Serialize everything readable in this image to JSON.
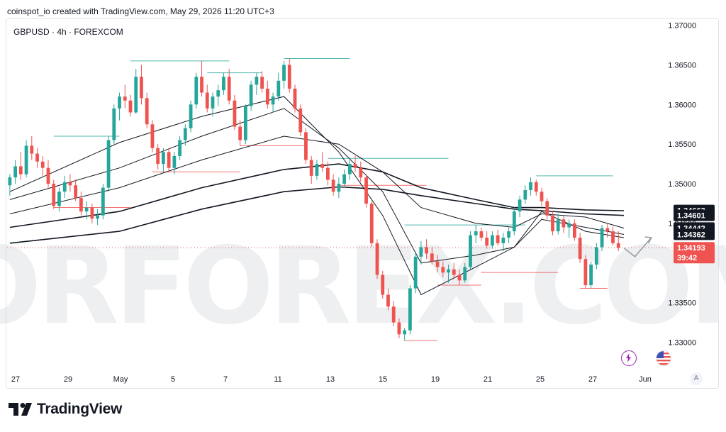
{
  "credit": "coinspot_io created with TradingView.com, May 29, 2026 11:20 UTC+3",
  "symbol_line": "GBPUSD · 4h · FOREXCOM",
  "brand": "TradingView",
  "watermark": "TORFOREX.COM",
  "autoscale_label": "A",
  "colors": {
    "up": "#26a69a",
    "down": "#ef5350",
    "ma_line": "#131722",
    "last_price_badge": "#ef5350",
    "ma_badge": "#131722",
    "level_up": "#26a69a",
    "level_down": "#ef5350"
  },
  "chart_data": {
    "type": "candlestick",
    "timeframe": "4h",
    "y_axis": {
      "ylim": [
        1.327,
        1.3705
      ],
      "ticks": [
        "1.37000",
        "1.36500",
        "1.36000",
        "1.35500",
        "1.35000",
        "1.34500",
        "1.33500",
        "1.33000"
      ]
    },
    "x_axis": {
      "ticks": [
        "27",
        "29",
        "May",
        "5",
        "7",
        "11",
        "13",
        "15",
        "19",
        "21",
        "25",
        "27",
        "Jun"
      ]
    },
    "price_badges": [
      {
        "label": "1.34663",
        "value": 1.34663,
        "kind": "ma"
      },
      {
        "label": "1.34601",
        "value": 1.34601,
        "kind": "ma"
      },
      {
        "label": "1.34442",
        "value": 1.34442,
        "kind": "ma"
      },
      {
        "label": "1.34362",
        "value": 1.34362,
        "kind": "ma"
      },
      {
        "label": "1.34193",
        "value": 1.34193,
        "kind": "last"
      }
    ],
    "countdown": "39:42",
    "last_price": 1.34193,
    "candles": [
      [
        1.3498,
        1.3512,
        1.3485,
        1.3508
      ],
      [
        1.3508,
        1.353,
        1.35,
        1.3522
      ],
      [
        1.3522,
        1.354,
        1.3505,
        1.3512
      ],
      [
        1.3512,
        1.3555,
        1.3508,
        1.3548
      ],
      [
        1.3548,
        1.356,
        1.353,
        1.3538
      ],
      [
        1.3538,
        1.3545,
        1.352,
        1.3528
      ],
      [
        1.3528,
        1.3535,
        1.351,
        1.352
      ],
      [
        1.352,
        1.353,
        1.3495,
        1.35
      ],
      [
        1.35,
        1.3505,
        1.3468,
        1.3472
      ],
      [
        1.3472,
        1.3495,
        1.3465,
        1.349
      ],
      [
        1.349,
        1.351,
        1.3482,
        1.3502
      ],
      [
        1.3502,
        1.3512,
        1.349,
        1.3498
      ],
      [
        1.3498,
        1.3505,
        1.3478,
        1.3482
      ],
      [
        1.3482,
        1.349,
        1.346,
        1.3465
      ],
      [
        1.3465,
        1.3478,
        1.3455,
        1.347
      ],
      [
        1.347,
        1.3475,
        1.345,
        1.3456
      ],
      [
        1.3456,
        1.3468,
        1.3448,
        1.346
      ],
      [
        1.346,
        1.35,
        1.3455,
        1.3495
      ],
      [
        1.3495,
        1.356,
        1.349,
        1.3555
      ],
      [
        1.3555,
        1.36,
        1.355,
        1.3595
      ],
      [
        1.3595,
        1.3615,
        1.358,
        1.361
      ],
      [
        1.361,
        1.3625,
        1.3595,
        1.3605
      ],
      [
        1.3605,
        1.3612,
        1.3585,
        1.359
      ],
      [
        1.359,
        1.3645,
        1.3588,
        1.3635
      ],
      [
        1.3635,
        1.365,
        1.36,
        1.3608
      ],
      [
        1.3608,
        1.3615,
        1.357,
        1.3575
      ],
      [
        1.3575,
        1.358,
        1.354,
        1.3545
      ],
      [
        1.3545,
        1.355,
        1.3518,
        1.3525
      ],
      [
        1.3525,
        1.3545,
        1.3515,
        1.354
      ],
      [
        1.354,
        1.3545,
        1.3515,
        1.352
      ],
      [
        1.352,
        1.354,
        1.3512,
        1.3535
      ],
      [
        1.3535,
        1.356,
        1.353,
        1.3555
      ],
      [
        1.3555,
        1.3575,
        1.3548,
        1.357
      ],
      [
        1.357,
        1.3605,
        1.3565,
        1.36
      ],
      [
        1.36,
        1.364,
        1.3595,
        1.3635
      ],
      [
        1.3635,
        1.3655,
        1.361,
        1.3615
      ],
      [
        1.3615,
        1.3625,
        1.359,
        1.3595
      ],
      [
        1.3595,
        1.3615,
        1.3585,
        1.361
      ],
      [
        1.361,
        1.3625,
        1.3598,
        1.3618
      ],
      [
        1.3618,
        1.364,
        1.3612,
        1.3635
      ],
      [
        1.3635,
        1.3645,
        1.36,
        1.3605
      ],
      [
        1.3605,
        1.3612,
        1.3568,
        1.3572
      ],
      [
        1.3572,
        1.358,
        1.3548,
        1.3555
      ],
      [
        1.3555,
        1.36,
        1.355,
        1.3598
      ],
      [
        1.3598,
        1.363,
        1.3592,
        1.3625
      ],
      [
        1.3625,
        1.364,
        1.3612,
        1.3635
      ],
      [
        1.3635,
        1.3642,
        1.3615,
        1.362
      ],
      [
        1.362,
        1.363,
        1.3595,
        1.36
      ],
      [
        1.36,
        1.3615,
        1.359,
        1.361
      ],
      [
        1.361,
        1.364,
        1.3605,
        1.363
      ],
      [
        1.363,
        1.3655,
        1.362,
        1.365
      ],
      [
        1.365,
        1.3658,
        1.3615,
        1.362
      ],
      [
        1.362,
        1.3625,
        1.359,
        1.3595
      ],
      [
        1.3595,
        1.36,
        1.356,
        1.3565
      ],
      [
        1.3565,
        1.357,
        1.3525,
        1.353
      ],
      [
        1.353,
        1.3535,
        1.35,
        1.351
      ],
      [
        1.351,
        1.353,
        1.3505,
        1.3525
      ],
      [
        1.3525,
        1.354,
        1.3515,
        1.352
      ],
      [
        1.352,
        1.3528,
        1.3498,
        1.3505
      ],
      [
        1.3505,
        1.3512,
        1.3485,
        1.349
      ],
      [
        1.349,
        1.3508,
        1.3482,
        1.35
      ],
      [
        1.35,
        1.3518,
        1.3495,
        1.3512
      ],
      [
        1.3512,
        1.353,
        1.3505,
        1.3525
      ],
      [
        1.3525,
        1.3535,
        1.3515,
        1.352
      ],
      [
        1.352,
        1.3528,
        1.3502,
        1.3508
      ],
      [
        1.3508,
        1.3512,
        1.347,
        1.3475
      ],
      [
        1.3475,
        1.3478,
        1.342,
        1.3425
      ],
      [
        1.3425,
        1.343,
        1.338,
        1.3385
      ],
      [
        1.3385,
        1.339,
        1.3355,
        1.336
      ],
      [
        1.336,
        1.3368,
        1.334,
        1.3345
      ],
      [
        1.3345,
        1.3352,
        1.332,
        1.3325
      ],
      [
        1.3325,
        1.333,
        1.3305,
        1.331
      ],
      [
        1.331,
        1.3318,
        1.3302,
        1.3315
      ],
      [
        1.3315,
        1.3372,
        1.331,
        1.3368
      ],
      [
        1.3368,
        1.3412,
        1.3362,
        1.3408
      ],
      [
        1.3408,
        1.3428,
        1.3398,
        1.342
      ],
      [
        1.342,
        1.343,
        1.3405,
        1.3412
      ],
      [
        1.3412,
        1.342,
        1.3398,
        1.3402
      ],
      [
        1.3402,
        1.341,
        1.3388,
        1.3395
      ],
      [
        1.3395,
        1.3402,
        1.3382,
        1.3388
      ],
      [
        1.3388,
        1.3398,
        1.3375,
        1.3392
      ],
      [
        1.3392,
        1.34,
        1.338,
        1.3385
      ],
      [
        1.3385,
        1.3392,
        1.3372,
        1.3378
      ],
      [
        1.3378,
        1.34,
        1.3375,
        1.3395
      ],
      [
        1.3395,
        1.344,
        1.3392,
        1.3435
      ],
      [
        1.3435,
        1.3448,
        1.3425,
        1.344
      ],
      [
        1.344,
        1.3445,
        1.3428,
        1.3432
      ],
      [
        1.3432,
        1.344,
        1.3418,
        1.3422
      ],
      [
        1.3422,
        1.344,
        1.3418,
        1.3435
      ],
      [
        1.3435,
        1.3442,
        1.3422,
        1.3425
      ],
      [
        1.3425,
        1.3438,
        1.3415,
        1.3432
      ],
      [
        1.3432,
        1.3445,
        1.3425,
        1.344
      ],
      [
        1.344,
        1.347,
        1.3435,
        1.3465
      ],
      [
        1.3465,
        1.3485,
        1.3458,
        1.348
      ],
      [
        1.348,
        1.3498,
        1.3475,
        1.3492
      ],
      [
        1.3492,
        1.3508,
        1.3485,
        1.3502
      ],
      [
        1.3502,
        1.3505,
        1.3485,
        1.349
      ],
      [
        1.349,
        1.3495,
        1.3472,
        1.3478
      ],
      [
        1.3478,
        1.3482,
        1.3455,
        1.346
      ],
      [
        1.346,
        1.3465,
        1.3435,
        1.344
      ],
      [
        1.344,
        1.3462,
        1.3436,
        1.3455
      ],
      [
        1.3455,
        1.346,
        1.3438,
        1.3445
      ],
      [
        1.3445,
        1.3455,
        1.3432,
        1.345
      ],
      [
        1.345,
        1.3455,
        1.3428,
        1.3432
      ],
      [
        1.3432,
        1.3438,
        1.34,
        1.3405
      ],
      [
        1.3405,
        1.341,
        1.3368,
        1.3372
      ],
      [
        1.3372,
        1.3402,
        1.3368,
        1.3398
      ],
      [
        1.3398,
        1.3425,
        1.3392,
        1.342
      ],
      [
        1.342,
        1.3448,
        1.3415,
        1.3444
      ],
      [
        1.3444,
        1.345,
        1.3432,
        1.344
      ],
      [
        1.344,
        1.3446,
        1.3422,
        1.3425
      ],
      [
        1.3425,
        1.344,
        1.3415,
        1.3419
      ]
    ],
    "moving_averages": [
      {
        "points": [
          [
            0,
            1.349
          ],
          [
            20,
            1.3552
          ],
          [
            35,
            1.3585
          ],
          [
            50,
            1.361
          ],
          [
            60,
            1.354
          ],
          [
            68,
            1.346
          ],
          [
            75,
            1.336
          ],
          [
            85,
            1.3395
          ],
          [
            92,
            1.342
          ],
          [
            97,
            1.3465
          ],
          [
            105,
            1.344
          ],
          [
            112,
            1.3432
          ]
        ]
      },
      {
        "points": [
          [
            0,
            1.348
          ],
          [
            20,
            1.352
          ],
          [
            35,
            1.356
          ],
          [
            50,
            1.3595
          ],
          [
            60,
            1.3545
          ],
          [
            68,
            1.349
          ],
          [
            75,
            1.34
          ],
          [
            85,
            1.341
          ],
          [
            92,
            1.342
          ],
          [
            97,
            1.3455
          ],
          [
            105,
            1.3445
          ],
          [
            112,
            1.3436
          ]
        ]
      },
      {
        "points": [
          [
            0,
            1.3462
          ],
          [
            20,
            1.3495
          ],
          [
            35,
            1.353
          ],
          [
            50,
            1.356
          ],
          [
            60,
            1.355
          ],
          [
            68,
            1.3515
          ],
          [
            75,
            1.347
          ],
          [
            85,
            1.345
          ],
          [
            92,
            1.3445
          ],
          [
            97,
            1.3462
          ],
          [
            105,
            1.3458
          ],
          [
            112,
            1.3444
          ]
        ]
      },
      {
        "points": [
          [
            0,
            1.3445
          ],
          [
            20,
            1.3465
          ],
          [
            35,
            1.3495
          ],
          [
            50,
            1.3518
          ],
          [
            60,
            1.3525
          ],
          [
            68,
            1.3515
          ],
          [
            75,
            1.3495
          ],
          [
            85,
            1.348
          ],
          [
            92,
            1.347
          ],
          [
            97,
            1.347
          ],
          [
            105,
            1.3467
          ],
          [
            112,
            1.3466
          ]
        ]
      },
      {
        "points": [
          [
            0,
            1.3425
          ],
          [
            20,
            1.344
          ],
          [
            35,
            1.3468
          ],
          [
            50,
            1.349
          ],
          [
            60,
            1.3496
          ],
          [
            68,
            1.3493
          ],
          [
            75,
            1.3485
          ],
          [
            85,
            1.3475
          ],
          [
            92,
            1.3468
          ],
          [
            97,
            1.3466
          ],
          [
            105,
            1.3462
          ],
          [
            112,
            1.346
          ]
        ]
      }
    ],
    "levels": [
      {
        "price": 1.356,
        "from": 8,
        "to": 20,
        "kind": "high"
      },
      {
        "price": 1.347,
        "from": 8,
        "to": 22,
        "kind": "low"
      },
      {
        "price": 1.3655,
        "from": 22,
        "to": 40,
        "kind": "high"
      },
      {
        "price": 1.3515,
        "from": 26,
        "to": 42,
        "kind": "low"
      },
      {
        "price": 1.364,
        "from": 36,
        "to": 46,
        "kind": "high"
      },
      {
        "price": 1.3548,
        "from": 42,
        "to": 54,
        "kind": "low"
      },
      {
        "price": 1.3658,
        "from": 50,
        "to": 62,
        "kind": "high"
      },
      {
        "price": 1.3532,
        "from": 58,
        "to": 80,
        "kind": "high"
      },
      {
        "price": 1.3498,
        "from": 60,
        "to": 76,
        "kind": "low"
      },
      {
        "price": 1.3302,
        "from": 72,
        "to": 78,
        "kind": "low"
      },
      {
        "price": 1.3372,
        "from": 78,
        "to": 86,
        "kind": "low"
      },
      {
        "price": 1.3448,
        "from": 72,
        "to": 94,
        "kind": "high"
      },
      {
        "price": 1.351,
        "from": 96,
        "to": 110,
        "kind": "high"
      },
      {
        "price": 1.3388,
        "from": 86,
        "to": 100,
        "kind": "low"
      },
      {
        "price": 1.3368,
        "from": 104,
        "to": 109,
        "kind": "low"
      }
    ],
    "projection": [
      [
        112,
        1.3419
      ],
      [
        114,
        1.3408
      ],
      [
        117,
        1.3432
      ]
    ]
  }
}
